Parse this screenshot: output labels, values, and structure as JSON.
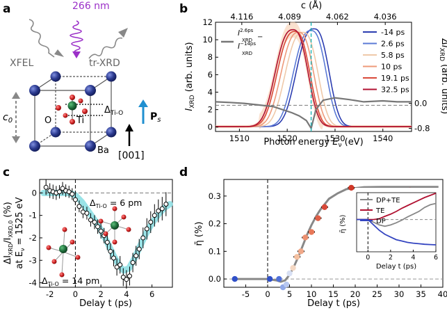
{
  "panel_a": {
    "label": "a",
    "pump_label": "266 nm",
    "xfel_label": "XFEL",
    "trxrd_label": "tr-XRD",
    "c0_label": "c",
    "c0_sub": "0",
    "o_label": "O",
    "ti_label": "Ti",
    "ba_label": "Ba",
    "delta_label": "Δ",
    "delta_sub": "Ti-O",
    "ps_label": "P",
    "ps_sub": "s",
    "direction_label": "[001]",
    "colors": {
      "ba": "#2b3a8f",
      "ti": "#1e6b3a",
      "o": "#cc1f1f",
      "pump": "#9b30c8",
      "arrow": "#1f8fd0"
    }
  },
  "chart_data": [
    {
      "id": "b",
      "type": "line",
      "panel_label": "b",
      "xlabel_pre": "Photon energy ",
      "xlabel_var": "E",
      "xlabel_sub": "ν",
      "xlabel_post": " (eV)",
      "ylabel_left": "I",
      "ylabel_left_sub": "XRD",
      "ylabel_left_post": " (arb. units)",
      "ylabel_right": "ΔI",
      "ylabel_right_sub": "XRD",
      "ylabel_right_post": " (arb. units)",
      "top_label": "c (Å)",
      "xlim": [
        1505,
        1546
      ],
      "ylim_left": [
        -0.5,
        12
      ],
      "xticks": [
        1510,
        1520,
        1530,
        1540
      ],
      "yticks_left": [
        0,
        2,
        4,
        6,
        8,
        10,
        12
      ],
      "ylim_right": [
        -0.9,
        2.6
      ],
      "yticks_right": [
        "0.0",
        "-0.8"
      ],
      "top_ticks": [
        {
          "label": "4.116",
          "x": 1510.5
        },
        {
          "label": "4.089",
          "x": 1520.5
        },
        {
          "label": "4.062",
          "x": 1530.5
        },
        {
          "label": "4.036",
          "x": 1540.5
        }
      ],
      "vline_x": 1525,
      "hline_y": 2.5,
      "diff_legend": {
        "num": "I",
        "num_sup": "2.6ps",
        "num_sub": "XRD",
        "den": "I",
        "den_sup": "−14ps",
        "den_sub": "XRD",
        "minus": "−"
      },
      "series": [
        {
          "name": "-14 ps",
          "color": "#2b3cb0",
          "center": 1525.6,
          "peak": 11.2
        },
        {
          "name": "2.6 ps",
          "color": "#5b7ad6",
          "center": 1525.0,
          "peak": 11.0
        },
        {
          "name": "5.8 ps",
          "color": "#efc9a9",
          "center": 1523.3,
          "peak": 10.8
        },
        {
          "name": "10 ps",
          "color": "#ee9a7a",
          "center": 1522.4,
          "peak": 10.8
        },
        {
          "name": "19.1 ps",
          "color": "#d94a3a",
          "center": 1521.6,
          "peak": 10.9
        },
        {
          "name": "32.5 ps",
          "color": "#b01030",
          "center": 1521.2,
          "peak": 11.1
        }
      ],
      "diff_curve": {
        "x": [
          1505,
          1508,
          1511,
          1514,
          1517,
          1519,
          1521,
          1522.5,
          1524,
          1525,
          1526,
          1527.5,
          1530,
          1533,
          1536,
          1540,
          1543,
          1546
        ],
        "y": [
          0.05,
          0.03,
          0.0,
          -0.05,
          -0.1,
          -0.2,
          -0.3,
          -0.4,
          -0.55,
          -0.8,
          -0.2,
          0.1,
          0.18,
          0.12,
          0.05,
          0.08,
          0.05,
          0.05
        ]
      }
    },
    {
      "id": "c",
      "type": "scatter",
      "panel_label": "c",
      "xlabel": "Delay t (ps)",
      "ylabel_1": "ΔI",
      "ylabel_1_sub": "XRD",
      "ylabel_1_mid": "/I",
      "ylabel_1_sub2": "XRD,0",
      "ylabel_1_post": " (%)",
      "ylabel_2_pre": "at E",
      "ylabel_2_sub": "ν",
      "ylabel_2_post": " = 1525 eV",
      "xlim": [
        -2.8,
        7.6
      ],
      "ylim": [
        -4.2,
        0.6
      ],
      "xticks": [
        -2,
        0,
        2,
        4,
        6
      ],
      "yticks": [
        0,
        -1,
        -2,
        -3,
        -4
      ],
      "label_6pm": "Δ",
      "label_6pm_sub": "Ti-O",
      "label_6pm_post": " = 6 pm",
      "label_14pm": "Δ",
      "label_14pm_sub": "Ti-O",
      "label_14pm_post": " = 14 pm",
      "points": {
        "x": [
          -2.3,
          -2.0,
          -1.75,
          -1.5,
          -1.25,
          -1.0,
          -0.75,
          -0.5,
          -0.25,
          0.0,
          0.3,
          0.6,
          0.9,
          1.2,
          1.5,
          1.75,
          2.0,
          2.25,
          2.5,
          2.75,
          3.0,
          3.25,
          3.5,
          3.75,
          4.0,
          4.25,
          4.5,
          4.75,
          5.0,
          5.3,
          5.6,
          5.9,
          6.2,
          6.5,
          6.8,
          7.1
        ],
        "y": [
          0.25,
          0.1,
          0.05,
          0.0,
          0.05,
          0.2,
          0.1,
          0.05,
          -0.05,
          -0.3,
          -0.6,
          -0.85,
          -0.9,
          -1.2,
          -1.3,
          -1.5,
          -1.7,
          -1.9,
          -2.2,
          -2.6,
          -2.9,
          -3.3,
          -3.2,
          -3.75,
          -3.85,
          -3.7,
          -3.1,
          -2.8,
          -2.5,
          -2.0,
          -1.6,
          -1.3,
          -1.0,
          -0.8,
          -0.7,
          -0.5
        ]
      },
      "fit": {
        "x": [
          -2.5,
          -2,
          -1.5,
          -1,
          -0.5,
          0,
          0.5,
          1,
          1.5,
          2,
          2.5,
          3,
          3.5,
          3.8,
          4.2,
          4.6,
          5,
          5.5,
          6,
          6.5,
          7,
          7.4
        ],
        "y": [
          0.0,
          0.0,
          0.0,
          0.0,
          0.0,
          -0.1,
          -0.4,
          -0.8,
          -1.2,
          -1.65,
          -2.2,
          -2.8,
          -3.3,
          -3.45,
          -3.35,
          -2.95,
          -2.45,
          -1.85,
          -1.35,
          -0.95,
          -0.65,
          -0.5
        ]
      }
    },
    {
      "id": "d",
      "type": "scatter",
      "panel_label": "d",
      "xlabel": "Delay t (ps)",
      "ylabel": "η̄ (%)",
      "xlim": [
        -10,
        40
      ],
      "ylim": [
        -0.03,
        0.36
      ],
      "xticks": [
        -5,
        0,
        5,
        10,
        15,
        20,
        25,
        30,
        35,
        40
      ],
      "yticks": [
        "0.0",
        "0.1",
        "0.2",
        "0.3"
      ],
      "points": {
        "x": [
          -7.5,
          0.5,
          2.6,
          3.5,
          4.3,
          5.0,
          5.8,
          6.7,
          7.6,
          8.6,
          10.0,
          11.5,
          13.0,
          19.1,
          32.5
        ],
        "y": [
          0.0,
          0.0,
          0.0,
          -0.03,
          -0.02,
          0.02,
          0.04,
          0.08,
          0.1,
          0.15,
          0.17,
          0.22,
          0.26,
          0.33,
          0.32
        ],
        "colors": [
          "#3050c8",
          "#3050c8",
          "#5070d8",
          "#90a8e8",
          "#b8c8f0",
          "#d8e0f4",
          "#f4d8c4",
          "#f4c0a0",
          "#f0a888",
          "#ec9070",
          "#e87858",
          "#e06048",
          "#d84838",
          "#d03828",
          "#c01828"
        ]
      },
      "fit": {
        "x": [
          -8,
          -2,
          0,
          2,
          3,
          4,
          5,
          6,
          7,
          8,
          9,
          10,
          11,
          12,
          13,
          14,
          16,
          18,
          22,
          26,
          30,
          35,
          39
        ],
        "y": [
          0.0,
          0.0,
          0.0,
          -0.005,
          -0.01,
          -0.005,
          0.015,
          0.045,
          0.08,
          0.12,
          0.16,
          0.195,
          0.225,
          0.25,
          0.27,
          0.29,
          0.31,
          0.325,
          0.332,
          0.333,
          0.333,
          0.333,
          0.333
        ]
      },
      "inset": {
        "xlabel": "Delay t (ps)",
        "ylabel": "η̄ (%)",
        "xlim": [
          -1,
          6
        ],
        "ylim": [
          -0.12,
          0.1
        ],
        "xticks": [
          0,
          2,
          4,
          6
        ],
        "legend_pos": "top-left",
        "series": [
          {
            "name": "DP+TE",
            "color": "#888888",
            "x": [
              -1,
              0,
              0.5,
              1,
              1.5,
              2,
              2.5,
              3,
              3.5,
              4,
              4.5,
              5,
              5.5,
              6
            ],
            "y": [
              0,
              0,
              -0.01,
              -0.02,
              -0.025,
              -0.02,
              -0.012,
              -0.002,
              0.01,
              0.02,
              0.03,
              0.045,
              0.055,
              0.06
            ]
          },
          {
            "name": "TE",
            "color": "#b01030",
            "x": [
              -1,
              0,
              0.5,
              1,
              1.5,
              2,
              2.5,
              3,
              3.5,
              4,
              4.5,
              5,
              5.5,
              6
            ],
            "y": [
              0,
              0,
              0.0,
              0.003,
              0.012,
              0.02,
              0.03,
              0.042,
              0.052,
              0.062,
              0.072,
              0.082,
              0.09,
              0.098
            ]
          },
          {
            "name": "DP",
            "color": "#3344c0",
            "x": [
              -1,
              0,
              0.5,
              1,
              1.5,
              2,
              2.5,
              3,
              3.5,
              4,
              4.5,
              5,
              5.5,
              6
            ],
            "y": [
              0,
              0,
              -0.02,
              -0.04,
              -0.055,
              -0.065,
              -0.075,
              -0.08,
              -0.085,
              -0.088,
              -0.09,
              -0.092,
              -0.093,
              -0.094
            ]
          }
        ]
      }
    }
  ]
}
